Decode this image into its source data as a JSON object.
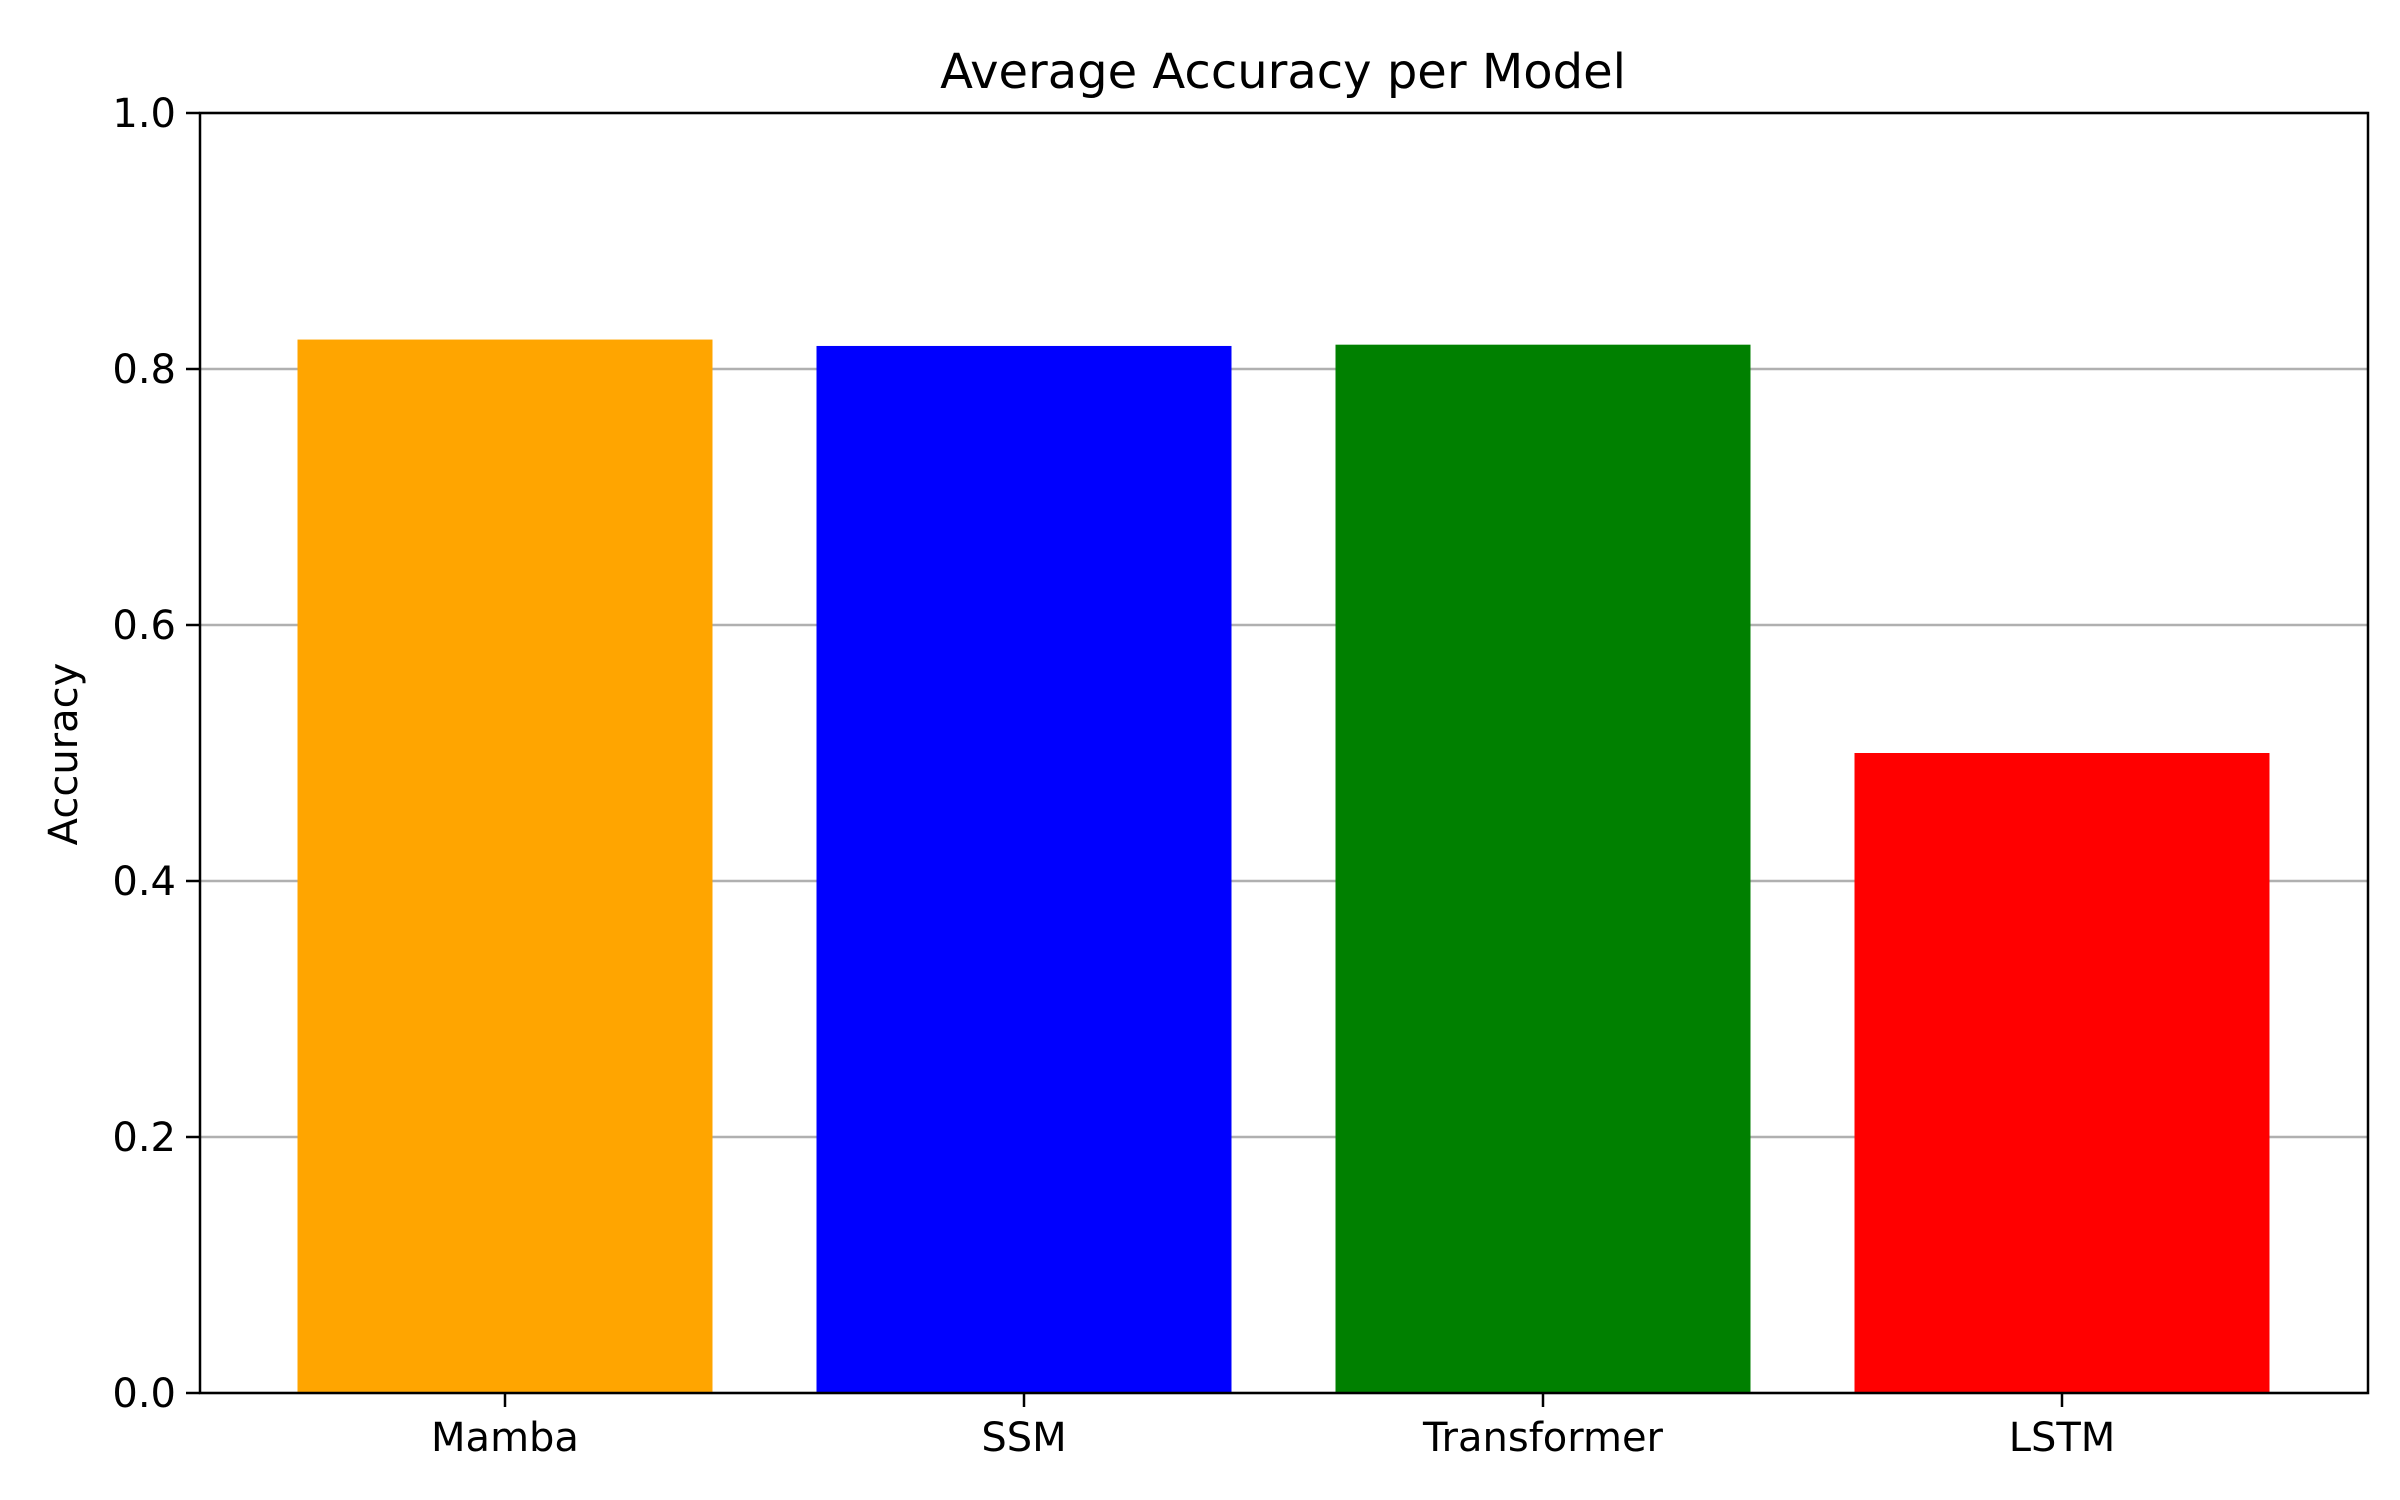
{
  "chart_data": {
    "type": "bar",
    "title": "Average Accuracy per Model",
    "xlabel": "",
    "ylabel": "Accuracy",
    "categories": [
      "Mamba",
      "SSM",
      "Transformer",
      "LSTM"
    ],
    "values": [
      0.823,
      0.818,
      0.819,
      0.5
    ],
    "colors": [
      "#ffa500",
      "#0000ff",
      "#008000",
      "#ff0000"
    ],
    "ylim": [
      0,
      1.0
    ],
    "yticks": [
      "0.0",
      "0.2",
      "0.4",
      "0.6",
      "0.8",
      "1.0"
    ],
    "grid": "y-axis horizontal lines",
    "legend": "none"
  }
}
